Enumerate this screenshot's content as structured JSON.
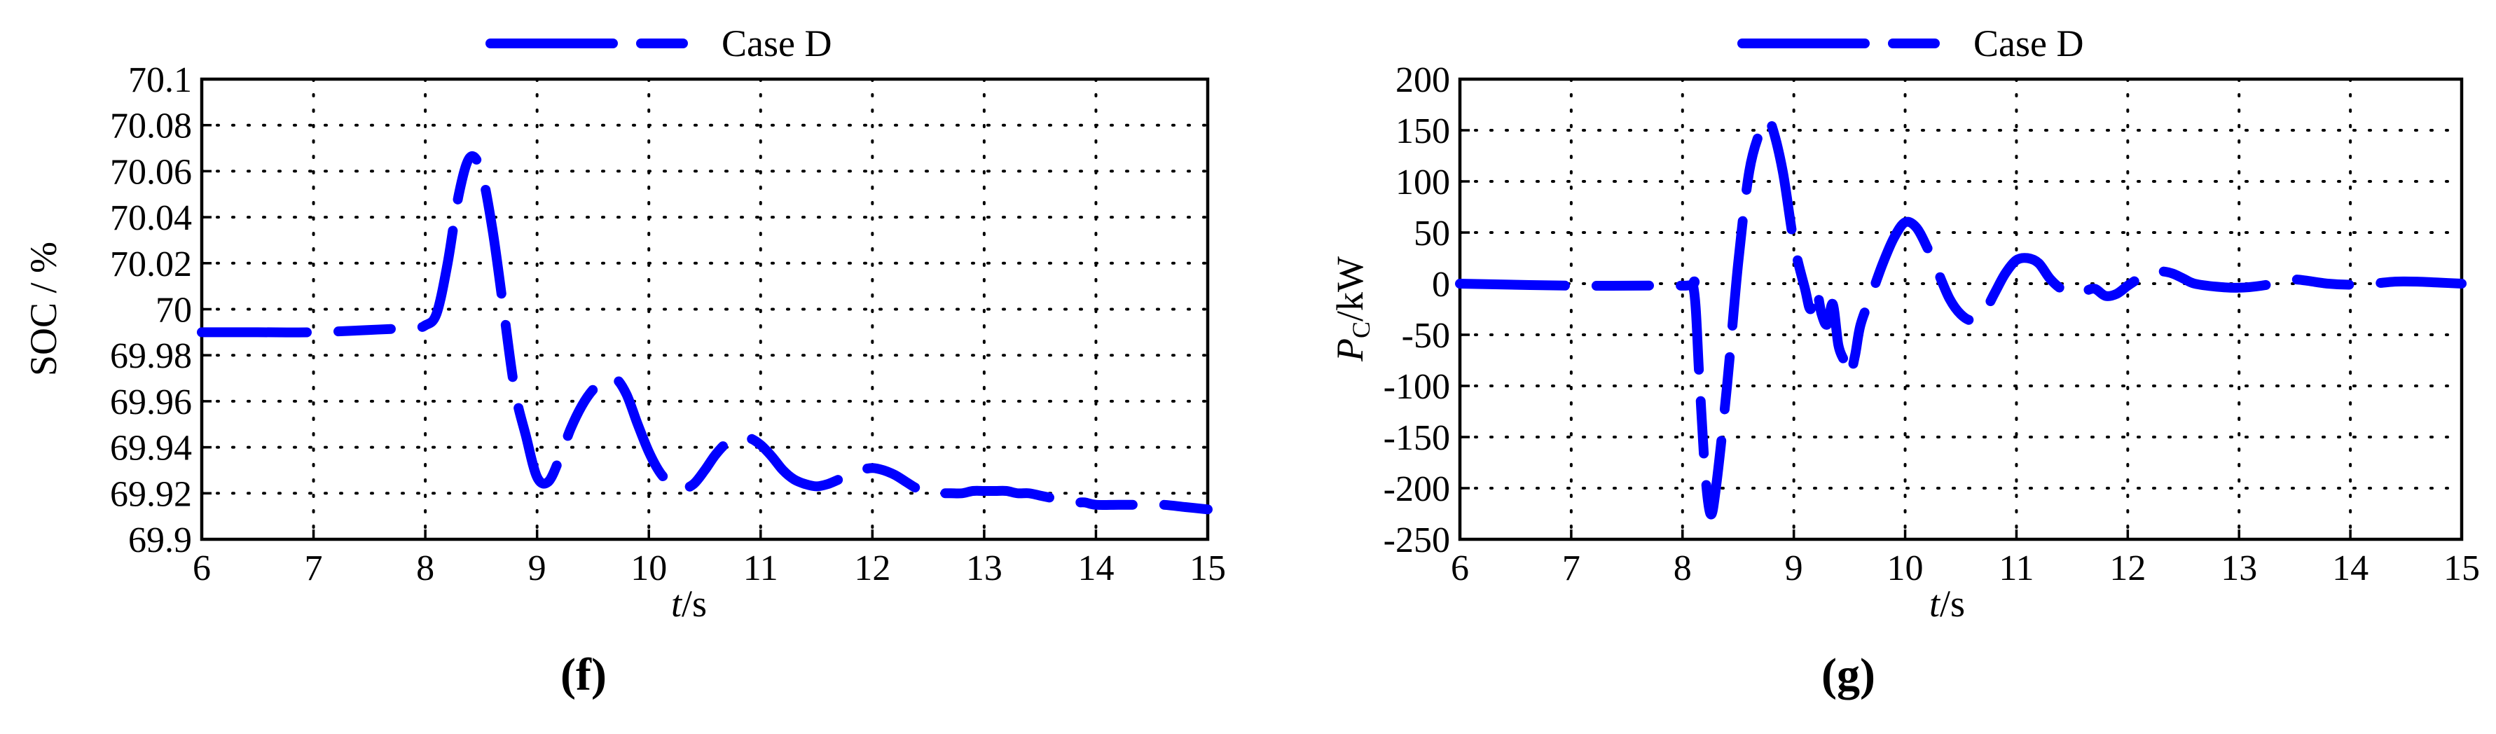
{
  "chart_data": [
    {
      "panel": "(f)",
      "type": "line",
      "xlabel_italic": "t",
      "xlabel_unit": "/s",
      "ylabel": "SOC / %",
      "xlim": [
        6,
        15
      ],
      "ylim": [
        69.9,
        70.1
      ],
      "xticks": [
        "6",
        "7",
        "8",
        "9",
        "10",
        "11",
        "12",
        "13",
        "14",
        "15"
      ],
      "yticks": [
        "70.1",
        "70.08",
        "70.06",
        "70.04",
        "70.02",
        "70",
        "69.98",
        "69.96",
        "69.94",
        "69.92",
        "69.9"
      ],
      "grid": true,
      "legend_position": "top-center",
      "series": [
        {
          "name": "Case D",
          "color": "#0000ff",
          "line_style": "dash-dot",
          "x": [
            6.0,
            6.5,
            7.0,
            7.5,
            7.9,
            8.0,
            8.1,
            8.2,
            8.3,
            8.4,
            8.5,
            8.6,
            8.7,
            8.8,
            8.9,
            9.0,
            9.1,
            9.2,
            9.3,
            9.4,
            9.5,
            9.6,
            9.7,
            9.8,
            9.9,
            10.0,
            10.1,
            10.2,
            10.3,
            10.4,
            10.5,
            10.6,
            10.7,
            10.8,
            10.9,
            11.0,
            11.1,
            11.2,
            11.3,
            11.4,
            11.5,
            11.6,
            11.7,
            11.8,
            11.9,
            12.0,
            12.1,
            12.2,
            12.3,
            12.4,
            12.5,
            12.6,
            12.7,
            12.8,
            12.9,
            13.0,
            13.1,
            13.2,
            13.3,
            13.4,
            13.5,
            13.6,
            13.7,
            13.8,
            13.9,
            14.0,
            14.2,
            14.4,
            14.6,
            14.8,
            15.0
          ],
          "y": [
            69.99,
            69.99,
            69.99,
            69.991,
            69.992,
            69.993,
            69.998,
            70.02,
            70.05,
            70.066,
            70.06,
            70.035,
            70.0,
            69.965,
            69.945,
            69.927,
            69.925,
            69.935,
            69.948,
            69.958,
            69.965,
            69.969,
            69.97,
            69.963,
            69.95,
            69.938,
            69.929,
            69.924,
            69.922,
            69.924,
            69.93,
            69.937,
            69.942,
            69.944,
            69.944,
            69.941,
            69.936,
            69.93,
            69.926,
            69.924,
            69.923,
            69.924,
            69.926,
            69.928,
            69.93,
            69.931,
            69.93,
            69.928,
            69.925,
            69.922,
            69.92,
            69.92,
            69.92,
            69.92,
            69.921,
            69.921,
            69.921,
            69.921,
            69.92,
            69.92,
            69.919,
            69.918,
            69.917,
            69.916,
            69.916,
            69.915,
            69.915,
            69.915,
            69.915,
            69.914,
            69.913
          ]
        }
      ]
    },
    {
      "panel": "(g)",
      "type": "line",
      "xlabel_italic": "t",
      "xlabel_unit": "/s",
      "ylabel_italic": "P",
      "ylabel_sub": "C",
      "ylabel_unit": "/kW",
      "xlim": [
        6,
        15
      ],
      "ylim": [
        -250,
        200
      ],
      "xticks": [
        "6",
        "7",
        "8",
        "9",
        "10",
        "11",
        "12",
        "13",
        "14",
        "15"
      ],
      "yticks": [
        "200",
        "150",
        "100",
        "50",
        "0",
        "-50",
        "-100",
        "-150",
        "-200",
        "-250"
      ],
      "grid": true,
      "legend_position": "top-center",
      "series": [
        {
          "name": "Case D",
          "color": "#0000ff",
          "line_style": "dash-dot",
          "x": [
            6.0,
            7.0,
            8.0,
            8.1,
            8.15,
            8.2,
            8.25,
            8.3,
            8.4,
            8.5,
            8.6,
            8.7,
            8.75,
            8.8,
            8.9,
            9.0,
            9.1,
            9.15,
            9.2,
            9.25,
            9.3,
            9.35,
            9.4,
            9.45,
            9.5,
            9.55,
            9.6,
            9.7,
            9.8,
            9.9,
            10.0,
            10.1,
            10.2,
            10.3,
            10.4,
            10.5,
            10.6,
            10.7,
            10.8,
            10.9,
            11.0,
            11.1,
            11.2,
            11.3,
            11.4,
            11.5,
            11.6,
            11.7,
            11.8,
            11.9,
            12.0,
            12.1,
            12.2,
            12.3,
            12.4,
            12.5,
            12.6,
            12.8,
            13.0,
            13.2,
            13.4,
            13.5,
            13.6,
            13.8,
            14.0,
            14.2,
            14.4,
            14.6,
            14.8,
            15.0
          ],
          "y": [
            0,
            -2,
            -2,
            -5,
            -90,
            -180,
            -225,
            -200,
            -100,
            20,
            110,
            150,
            160,
            155,
            110,
            40,
            -5,
            -25,
            -5,
            -30,
            -40,
            -20,
            -60,
            -75,
            -90,
            -70,
            -40,
            -10,
            20,
            45,
            60,
            55,
            35,
            10,
            -15,
            -30,
            -36,
            -30,
            -10,
            10,
            23,
            25,
            20,
            5,
            -5,
            -10,
            -8,
            -5,
            -12,
            -10,
            -2,
            5,
            10,
            12,
            10,
            5,
            0,
            -3,
            -4,
            -2,
            2,
            4,
            3,
            0,
            -1,
            0,
            2,
            2,
            1,
            0
          ]
        }
      ]
    }
  ]
}
